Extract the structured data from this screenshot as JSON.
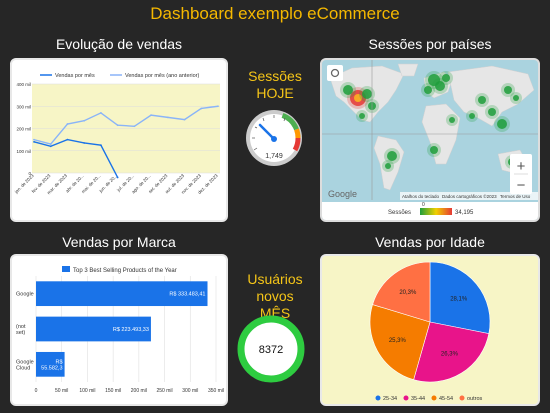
{
  "page": {
    "title": "Dashboard exemplo eCommerce"
  },
  "sections": {
    "sales": "Evolução de vendas",
    "sessions_country": "Sessões por países",
    "brand": "Vendas por Marca",
    "age": "Vendas por Idade"
  },
  "sessions_today": {
    "label_line1": "Sessões",
    "label_line2": "HOJE",
    "value": "1,749"
  },
  "new_users": {
    "label_line1": "Usuários novos",
    "label_line2": "MÊS",
    "value": "8372"
  },
  "map": {
    "legend_label": "Sessões",
    "legend_min": "0",
    "legend_max": "34,195",
    "attribution": [
      "Atalhos do teclado",
      "Dados cartográficos ©2023",
      "Termos de Uso"
    ],
    "logo": "Google",
    "zoom_in": "+",
    "zoom_out": "−",
    "colors": {
      "ocean": "#aad3df",
      "land": "#e8e8e8",
      "low": "#1e9e3b",
      "high": "#e53935"
    }
  },
  "chart_data": [
    {
      "type": "line",
      "legend_position": "top",
      "x": [
        "jan. de 2023",
        "fev. de 2023",
        "mar. de 2023",
        "abr. de 20...",
        "mai. de 20...",
        "jun. de 20...",
        "jul. de 20...",
        "ago. de 20...",
        "set. de 2023",
        "out. de 2023",
        "nov. de 2023",
        "dez. de 2023"
      ],
      "series": [
        {
          "name": "Vendas por mês",
          "color": "#1a73e8",
          "values": [
            140,
            120,
            150,
            135,
            125,
            -20,
            null,
            null,
            null,
            null,
            null,
            null
          ]
        },
        {
          "name": "Vendas por mês (ano anterior)",
          "color": "#8ab4f8",
          "values": [
            150,
            130,
            220,
            235,
            270,
            215,
            210,
            260,
            250,
            240,
            290,
            300
          ]
        }
      ],
      "ylim": [
        0,
        400
      ],
      "yticks": [
        "0",
        "100 mil",
        "200 mil",
        "300 mil",
        "400 mil"
      ],
      "background": "#f7f5c6",
      "grid": true
    },
    {
      "type": "bar",
      "orientation": "horizontal",
      "legend_position": "top",
      "series_name": "Top 3 Best Selling Products of the Year",
      "color": "#1a73e8",
      "categories": [
        "Google",
        "(not set)",
        "Google Cloud"
      ],
      "values": [
        333483.41,
        223493.33,
        55582.3
      ],
      "value_labels": [
        "R$ 333.483,41",
        "R$ 223.493,33",
        "R$ 55.582,3"
      ],
      "xlim": [
        0,
        350000
      ],
      "xticks": [
        "0",
        "50 mil",
        "100 mil",
        "150 mil",
        "200 mil",
        "250 mil",
        "300 mil",
        "350 mil"
      ],
      "grid": true
    },
    {
      "type": "pie",
      "legend_position": "bottom",
      "categories": [
        "25-34",
        "35-44",
        "45-54",
        "outros"
      ],
      "values": [
        28.1,
        26.3,
        25.3,
        20.3
      ],
      "labels": [
        "28,1%",
        "26,3%",
        "25,3%",
        "20,3%"
      ],
      "colors": [
        "#1a73e8",
        "#e8148a",
        "#f57c00",
        "#ff7043"
      ],
      "background": "#f7f5c6"
    }
  ]
}
